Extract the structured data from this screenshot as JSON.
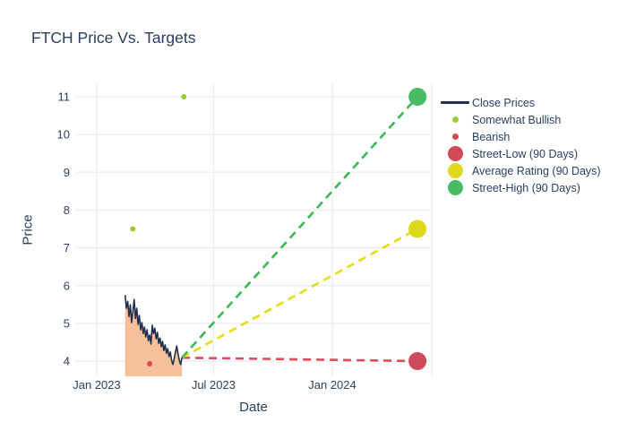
{
  "title": "FTCH Price Vs. Targets",
  "colors": {
    "background": "#ffffff",
    "grid": "#e8eef5",
    "text": "#2a3f5f",
    "close_line": "#22304f",
    "close_fill": "#f8c09a",
    "somewhat_bullish": "#9acd32",
    "bearish": "#d84a55",
    "street_low": "#d04a59",
    "average_rating": "#ded91d",
    "street_high": "#47bc63"
  },
  "chart_data": {
    "type": "line",
    "title": "FTCH Price Vs. Targets",
    "xlabel": "Date",
    "ylabel": "Price",
    "ylim": [
      3.6,
      11.36
    ],
    "xlim": [
      "2022-11-30",
      "2024-06-03"
    ],
    "grid": true,
    "legend_position": "right-outside",
    "y_ticks": [
      4,
      5,
      6,
      7,
      8,
      9,
      10,
      11
    ],
    "x_ticks": [
      {
        "date": "2023-01-01",
        "label": "Jan 2023"
      },
      {
        "date": "2023-07-01",
        "label": "Jul 2023"
      },
      {
        "date": "2024-01-01",
        "label": "Jan 2024"
      }
    ],
    "series": [
      {
        "name": "Close Prices",
        "type": "line",
        "color": "#22304f",
        "fill_color": "#f8c09a",
        "dates": [
          "2023-02-14",
          "2023-02-16",
          "2023-02-18",
          "2023-02-20",
          "2023-02-22",
          "2023-02-24",
          "2023-02-26",
          "2023-02-28",
          "2023-03-02",
          "2023-03-04",
          "2023-03-06",
          "2023-03-08",
          "2023-03-10",
          "2023-03-12",
          "2023-03-14",
          "2023-03-16",
          "2023-03-18",
          "2023-03-20",
          "2023-03-22",
          "2023-03-24",
          "2023-03-26",
          "2023-03-28",
          "2023-03-30",
          "2023-04-01",
          "2023-04-03",
          "2023-04-05",
          "2023-04-07",
          "2023-04-09",
          "2023-04-11",
          "2023-04-13",
          "2023-04-15",
          "2023-04-17",
          "2023-04-19",
          "2023-04-21",
          "2023-04-23",
          "2023-04-25",
          "2023-04-27",
          "2023-04-29",
          "2023-05-01",
          "2023-05-03",
          "2023-05-05",
          "2023-05-07",
          "2023-05-09",
          "2023-05-11",
          "2023-05-13"
        ],
        "prices": [
          5.75,
          5.4,
          5.58,
          5.18,
          5.49,
          5.02,
          5.32,
          5.63,
          5.13,
          5.4,
          4.97,
          5.21,
          4.83,
          5.02,
          4.73,
          4.9,
          4.64,
          4.83,
          4.54,
          4.69,
          4.45,
          4.95,
          4.73,
          4.87,
          4.59,
          4.76,
          4.47,
          4.61,
          4.38,
          4.52,
          4.28,
          4.43,
          4.21,
          4.33,
          4.12,
          4.24,
          4.02,
          3.91,
          4.07,
          4.24,
          4.4,
          4.19,
          4.02,
          3.91,
          4.09
        ]
      },
      {
        "name": "Somewhat Bullish",
        "type": "scatter",
        "color": "#9acd32",
        "marker_radius": 3,
        "points": [
          {
            "date": "2023-02-26",
            "price": 7.5
          },
          {
            "date": "2023-05-16",
            "price": 11.0
          }
        ]
      },
      {
        "name": "Bearish",
        "type": "scatter",
        "color": "#d84a55",
        "marker_radius": 3,
        "points": [
          {
            "date": "2023-03-24",
            "price": 3.93
          }
        ]
      },
      {
        "name": "Street-Low (90 Days)",
        "type": "target",
        "marker_color": "#d04a59",
        "dash_color": "#dd4a5e",
        "date": "2024-05-12",
        "value": 4.0,
        "marker_radius": 10
      },
      {
        "name": "Average Rating (90 Days)",
        "type": "target",
        "marker_color": "#ded91d",
        "dash_color": "#e4dd15",
        "date": "2024-05-12",
        "value": 7.5,
        "marker_radius": 10
      },
      {
        "name": "Street-High (90 Days)",
        "type": "target",
        "marker_color": "#47bc63",
        "dash_color": "#3bb857",
        "date": "2024-05-12",
        "value": 11.0,
        "marker_radius": 10
      }
    ]
  },
  "legend": {
    "items": [
      {
        "label": "Close Prices",
        "marker": "line",
        "color": "#22304f"
      },
      {
        "label": "Somewhat Bullish",
        "marker": "dot-small",
        "color": "#9acd32"
      },
      {
        "label": "Bearish",
        "marker": "dot-small",
        "color": "#d84a55"
      },
      {
        "label": "Street-Low (90 Days)",
        "marker": "dot-large",
        "color": "#d04a59"
      },
      {
        "label": "Average Rating (90 Days)",
        "marker": "dot-large",
        "color": "#ded91d"
      },
      {
        "label": "Street-High (90 Days)",
        "marker": "dot-large",
        "color": "#47bc63"
      }
    ]
  }
}
